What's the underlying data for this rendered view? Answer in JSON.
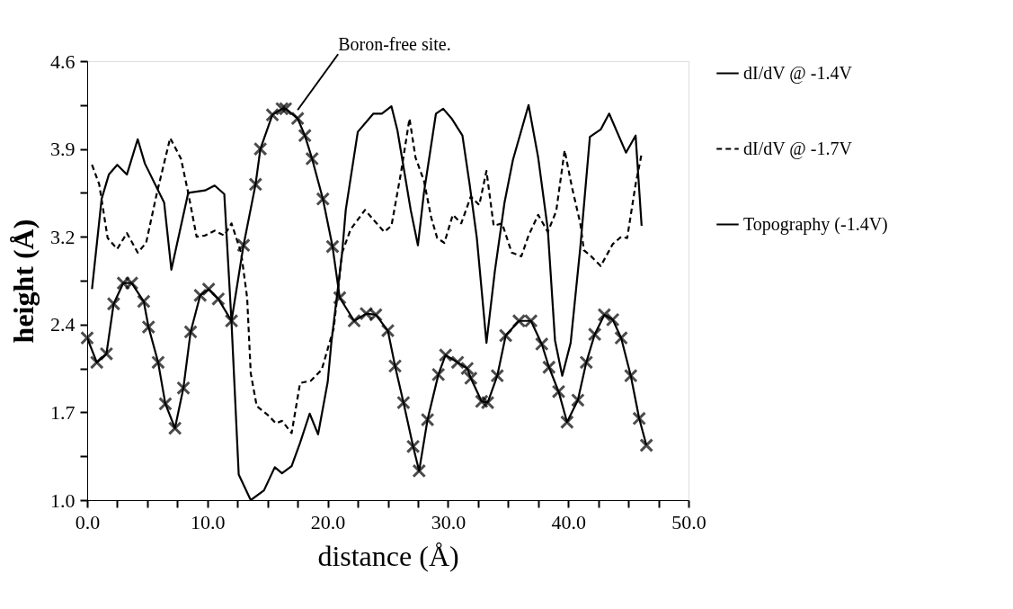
{
  "chart_data": {
    "type": "line",
    "xlabel": "distance (Å)",
    "ylabel": "height (Å)",
    "xlim": [
      0,
      50
    ],
    "ylim": [
      1.0,
      4.6
    ],
    "xticks": [
      {
        "value": 0,
        "label": "0.0"
      },
      {
        "value": 2.5,
        "label": null
      },
      {
        "value": 5,
        "label": null
      },
      {
        "value": 7.5,
        "label": null
      },
      {
        "value": 10,
        "label": "10.0"
      },
      {
        "value": 12.5,
        "label": null
      },
      {
        "value": 15,
        "label": null
      },
      {
        "value": 17.5,
        "label": null
      },
      {
        "value": 20,
        "label": "20.0"
      },
      {
        "value": 22.5,
        "label": null
      },
      {
        "value": 25,
        "label": null
      },
      {
        "value": 27.5,
        "label": null
      },
      {
        "value": 30,
        "label": "30.0"
      },
      {
        "value": 32.5,
        "label": null
      },
      {
        "value": 35,
        "label": null
      },
      {
        "value": 37.5,
        "label": null
      },
      {
        "value": 40,
        "label": "40.0"
      },
      {
        "value": 42.5,
        "label": null
      },
      {
        "value": 45,
        "label": null
      },
      {
        "value": 47.5,
        "label": null
      },
      {
        "value": 50,
        "label": "50.0"
      }
    ],
    "yticks": [
      {
        "value": 1.0,
        "label": "1.0"
      },
      {
        "value": 1.36,
        "label": null
      },
      {
        "value": 1.72,
        "label": "1.7"
      },
      {
        "value": 2.08,
        "label": null
      },
      {
        "value": 2.44,
        "label": "2.4"
      },
      {
        "value": 2.8,
        "label": null
      },
      {
        "value": 3.16,
        "label": "3.2"
      },
      {
        "value": 3.52,
        "label": null
      },
      {
        "value": 3.88,
        "label": "3.9"
      },
      {
        "value": 4.24,
        "label": null
      },
      {
        "value": 4.6,
        "label": "4.6"
      }
    ],
    "grid": false,
    "legend": "right",
    "annotations": [
      {
        "text": "Boron-free site.",
        "x": 17.5,
        "y": 4.2
      }
    ],
    "series": [
      {
        "name": "dI/dV @ -1.4V",
        "color": "#000000",
        "line_style": "solid",
        "marker": "none",
        "x": [
          0.4,
          1.2,
          1.8,
          2.5,
          3.3,
          4.2,
          4.8,
          6.4,
          7.0,
          8.4,
          9.8,
          10.6,
          11.4,
          12.0,
          12.6,
          13.6,
          14.7,
          15.6,
          16.2,
          17.0,
          17.7,
          18.5,
          19.2,
          20.0,
          20.3,
          21.2,
          21.5,
          22.5,
          23.8,
          24.5,
          25.3,
          25.8,
          26.9,
          27.5,
          28.0,
          29.0,
          29.6,
          30.3,
          31.2,
          31.8,
          32.4,
          33.2,
          33.9,
          34.7,
          35.4,
          36.7,
          37.5,
          38.3,
          38.9,
          39.5,
          40.2,
          41.0,
          41.8,
          42.7,
          43.4,
          44.8,
          45.6,
          46.1
        ],
        "values": [
          2.73,
          3.47,
          3.67,
          3.75,
          3.67,
          3.96,
          3.76,
          3.44,
          2.89,
          3.52,
          3.54,
          3.58,
          3.51,
          2.46,
          1.21,
          1.0,
          1.08,
          1.27,
          1.22,
          1.28,
          1.47,
          1.71,
          1.54,
          1.97,
          2.29,
          3.03,
          3.38,
          4.02,
          4.17,
          4.17,
          4.23,
          4.03,
          3.38,
          3.09,
          3.52,
          4.17,
          4.21,
          4.13,
          3.99,
          3.59,
          3.15,
          2.29,
          2.88,
          3.44,
          3.79,
          4.24,
          3.81,
          3.22,
          2.31,
          2.02,
          2.29,
          3.07,
          3.98,
          4.04,
          4.17,
          3.85,
          3.99,
          3.25
        ]
      },
      {
        "name": "dI/dV @ -1.7V",
        "color": "#000000",
        "line_style": "dashed",
        "marker": "none",
        "x": [
          0.4,
          1.0,
          1.7,
          2.5,
          3.3,
          4.2,
          4.9,
          5.8,
          6.9,
          7.8,
          8.4,
          9.1,
          9.8,
          10.6,
          11.4,
          12.0,
          12.8,
          13.3,
          13.6,
          14.1,
          15.0,
          15.7,
          16.2,
          17.0,
          17.7,
          18.6,
          19.5,
          20.0,
          20.5,
          21.2,
          21.9,
          23.1,
          23.8,
          24.7,
          25.3,
          26.1,
          26.8,
          27.3,
          28.0,
          28.6,
          29.1,
          29.7,
          30.4,
          31.1,
          31.9,
          32.6,
          33.2,
          33.8,
          34.5,
          35.3,
          36.1,
          36.7,
          37.5,
          38.3,
          39.0,
          39.7,
          40.3,
          41.0,
          41.3,
          41.9,
          42.7,
          43.7,
          44.4,
          44.9,
          45.6,
          46.1
        ],
        "values": [
          3.75,
          3.59,
          3.15,
          3.06,
          3.19,
          3.03,
          3.11,
          3.52,
          3.97,
          3.8,
          3.52,
          3.16,
          3.17,
          3.21,
          3.17,
          3.27,
          3.03,
          2.66,
          2.04,
          1.77,
          1.7,
          1.63,
          1.65,
          1.55,
          1.96,
          1.98,
          2.07,
          2.24,
          2.41,
          3.03,
          3.22,
          3.38,
          3.3,
          3.2,
          3.25,
          3.69,
          4.13,
          3.81,
          3.62,
          3.32,
          3.15,
          3.11,
          3.34,
          3.27,
          3.49,
          3.42,
          3.7,
          3.25,
          3.27,
          3.03,
          3.0,
          3.17,
          3.34,
          3.2,
          3.37,
          3.87,
          3.57,
          3.27,
          3.05,
          3.0,
          2.92,
          3.1,
          3.16,
          3.15,
          3.59,
          3.84
        ]
      },
      {
        "name": "Topography (-1.4V)",
        "color": "#000000",
        "line_style": "solid",
        "marker": "cross",
        "x": [
          0,
          0.8,
          1.6,
          2.2,
          3.0,
          3.7,
          4.7,
          5.1,
          5.9,
          6.5,
          7.3,
          8.0,
          8.6,
          9.4,
          10.1,
          10.9,
          12.0,
          13.0,
          14.0,
          14.4,
          15.4,
          16.2,
          16.5,
          17.5,
          18.1,
          18.7,
          19.6,
          20.4,
          21.0,
          22.2,
          23.2,
          24.0,
          25.0,
          25.6,
          26.3,
          27.1,
          27.6,
          28.3,
          29.2,
          29.8,
          30.8,
          31.6,
          31.9,
          32.8,
          33.3,
          34.1,
          34.8,
          35.9,
          36.9,
          37.8,
          38.4,
          39.2,
          39.9,
          40.8,
          41.5,
          42.2,
          43.0,
          43.7,
          44.4,
          45.2,
          45.9,
          46.5
        ],
        "values": [
          2.33,
          2.13,
          2.2,
          2.61,
          2.78,
          2.78,
          2.63,
          2.42,
          2.13,
          1.79,
          1.59,
          1.92,
          2.38,
          2.68,
          2.73,
          2.65,
          2.47,
          3.09,
          3.59,
          3.88,
          4.16,
          4.21,
          4.21,
          4.13,
          3.99,
          3.8,
          3.47,
          3.08,
          2.66,
          2.47,
          2.53,
          2.52,
          2.39,
          2.1,
          1.8,
          1.44,
          1.24,
          1.66,
          2.03,
          2.19,
          2.13,
          2.08,
          2.0,
          1.81,
          1.8,
          2.02,
          2.35,
          2.47,
          2.47,
          2.28,
          2.09,
          1.89,
          1.64,
          1.82,
          2.13,
          2.36,
          2.52,
          2.48,
          2.33,
          2.02,
          1.67,
          1.45
        ]
      }
    ]
  }
}
